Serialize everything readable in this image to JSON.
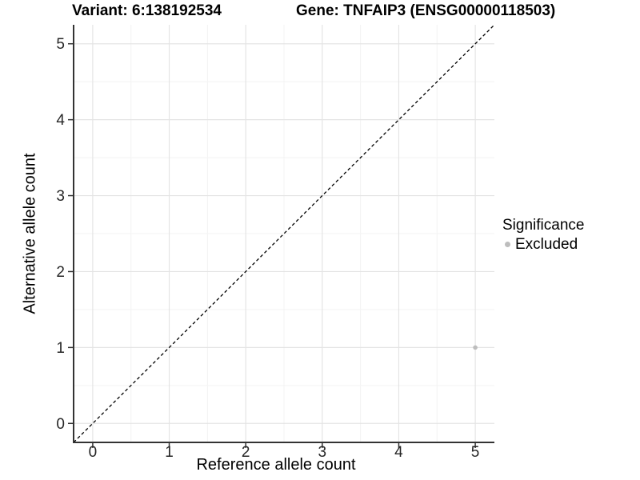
{
  "header": {
    "variant_title": "Variant: 6:138192534",
    "gene_title": "Gene: TNFAIP3 (ENSG00000118503)"
  },
  "legend": {
    "title": "Significance",
    "items": [
      {
        "label": "Excluded",
        "color": "#bdbdbd"
      }
    ]
  },
  "chart_data": {
    "type": "scatter",
    "title": "",
    "xlabel": "Reference allele count",
    "ylabel": "Alternative allele count",
    "xlim": [
      -0.25,
      5.25
    ],
    "ylim": [
      -0.25,
      5.25
    ],
    "xticks": [
      0,
      1,
      2,
      3,
      4,
      5
    ],
    "yticks": [
      0,
      1,
      2,
      3,
      4,
      5
    ],
    "grid": "major+minor",
    "legend_position": "right",
    "reference_line": {
      "kind": "identity",
      "equation": "y = x",
      "style": "dashed",
      "color": "#000000"
    },
    "series": [
      {
        "name": "Excluded",
        "color": "#bdbdbd",
        "points": [
          {
            "x": 5,
            "y": 1
          }
        ]
      }
    ]
  },
  "colors": {
    "background": "#ffffff",
    "grid_major": "#e4e4e4",
    "grid_minor": "#f3f3f3",
    "axis_line": "#333333",
    "tick_text": "#262626",
    "excluded_point": "#bdbdbd"
  }
}
